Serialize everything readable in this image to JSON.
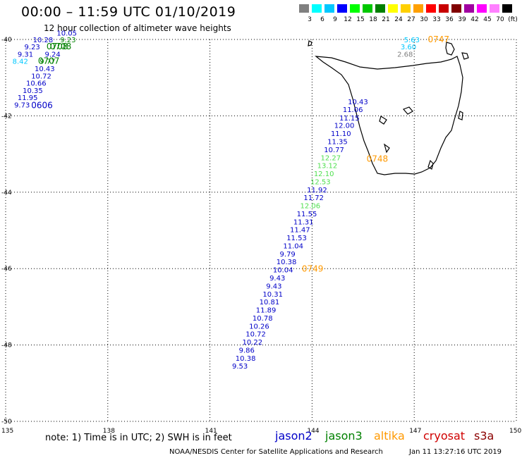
{
  "header": {
    "title": "00:00 – 11:59 UTC 01/10/2019",
    "subtitle": "12 hour collection of altimeter wave heights"
  },
  "colorbar": {
    "swatches": [
      "#808080",
      "#00ffff",
      "#00c8ff",
      "#0000ff",
      "#00ff00",
      "#00c800",
      "#008000",
      "#ffff00",
      "#ffd000",
      "#ffa000",
      "#ff0000",
      "#c80000",
      "#800000",
      "#a000a0",
      "#ff00ff",
      "#ff80ff",
      "#000000"
    ],
    "labels": [
      "3",
      "6",
      "9",
      "12",
      "15",
      "18",
      "21",
      "24",
      "27",
      "30",
      "33",
      "36",
      "39",
      "42",
      "45",
      "70",
      "(ft)"
    ]
  },
  "axes": {
    "lat_labels": [
      "-40",
      "-42",
      "-44",
      "-46",
      "-48",
      "-50"
    ],
    "lon_labels": [
      "135",
      "138",
      "141",
      "144",
      "147",
      "150"
    ]
  },
  "chart_data": {
    "type": "scatter",
    "xlabel": "",
    "ylabel": "",
    "xlim": [
      135,
      150
    ],
    "ylim": [
      -50,
      -40
    ],
    "colors": {
      "jason2": "#0000c8",
      "jason3": "#008000",
      "altika": "#ff9900",
      "cryosat": "#d00000",
      "s3a": "#8b0000"
    },
    "points": [
      {
        "lon": 136.5,
        "lat": -39.9,
        "v": "10.05",
        "c": "#0000c8"
      },
      {
        "lon": 136.6,
        "lat": -40.07,
        "v": "9.23",
        "c": "#008000"
      },
      {
        "lon": 135.8,
        "lat": -40.07,
        "v": "10.28",
        "c": "#0000c8"
      },
      {
        "lon": 135.55,
        "lat": -40.26,
        "v": "9.23",
        "c": "#0000c8"
      },
      {
        "lon": 135.35,
        "lat": -40.45,
        "v": "9.31",
        "c": "#0000c8"
      },
      {
        "lon": 136.15,
        "lat": -40.45,
        "v": "9.24",
        "c": "#0000c8"
      },
      {
        "lon": 135.2,
        "lat": -40.64,
        "v": "8.42",
        "c": "#00c8ff"
      },
      {
        "lon": 136.0,
        "lat": -40.64,
        "v": "9.77",
        "c": "#008000"
      },
      {
        "lon": 135.85,
        "lat": -40.83,
        "v": "10.43",
        "c": "#0000c8"
      },
      {
        "lon": 135.75,
        "lat": -41.02,
        "v": "10.72",
        "c": "#0000c8"
      },
      {
        "lon": 135.6,
        "lat": -41.21,
        "v": "10.66",
        "c": "#0000c8"
      },
      {
        "lon": 135.5,
        "lat": -41.4,
        "v": "10.35",
        "c": "#0000c8"
      },
      {
        "lon": 135.35,
        "lat": -41.59,
        "v": "11.95",
        "c": "#0000c8"
      },
      {
        "lon": 135.25,
        "lat": -41.78,
        "v": "9.73",
        "c": "#0000c8"
      },
      {
        "lon": 146.7,
        "lat": -40.07,
        "v": "5.63",
        "c": "#00c8ff"
      },
      {
        "lon": 146.6,
        "lat": -40.26,
        "v": "3.60",
        "c": "#00c8ff"
      },
      {
        "lon": 146.5,
        "lat": -40.45,
        "v": "2.68",
        "c": "#808080"
      },
      {
        "lon": 145.05,
        "lat": -41.7,
        "v": "10.43",
        "c": "#0000c8"
      },
      {
        "lon": 144.9,
        "lat": -41.9,
        "v": "11.06",
        "c": "#0000c8"
      },
      {
        "lon": 144.8,
        "lat": -42.12,
        "v": "11.15",
        "c": "#0000c8"
      },
      {
        "lon": 144.65,
        "lat": -42.32,
        "v": "12.00",
        "c": "#0000c8"
      },
      {
        "lon": 144.55,
        "lat": -42.53,
        "v": "11.10",
        "c": "#0000c8"
      },
      {
        "lon": 144.45,
        "lat": -42.74,
        "v": "11.35",
        "c": "#0000c8"
      },
      {
        "lon": 144.35,
        "lat": -42.95,
        "v": "10.77",
        "c": "#0000c8"
      },
      {
        "lon": 144.25,
        "lat": -43.16,
        "v": "12.27",
        "c": "#50e050"
      },
      {
        "lon": 144.15,
        "lat": -43.37,
        "v": "13.12",
        "c": "#50e050"
      },
      {
        "lon": 144.05,
        "lat": -43.58,
        "v": "12.10",
        "c": "#50e050"
      },
      {
        "lon": 143.95,
        "lat": -43.79,
        "v": "12.53",
        "c": "#50e050"
      },
      {
        "lon": 143.85,
        "lat": -44.0,
        "v": "11.92",
        "c": "#0000c8"
      },
      {
        "lon": 143.75,
        "lat": -44.21,
        "v": "11.72",
        "c": "#0000c8"
      },
      {
        "lon": 143.65,
        "lat": -44.42,
        "v": "12.06",
        "c": "#50e050"
      },
      {
        "lon": 143.55,
        "lat": -44.63,
        "v": "11.55",
        "c": "#0000c8"
      },
      {
        "lon": 143.45,
        "lat": -44.84,
        "v": "11.31",
        "c": "#0000c8"
      },
      {
        "lon": 143.35,
        "lat": -45.05,
        "v": "11.47",
        "c": "#0000c8"
      },
      {
        "lon": 143.25,
        "lat": -45.26,
        "v": "11.53",
        "c": "#0000c8"
      },
      {
        "lon": 143.15,
        "lat": -45.47,
        "v": "11.04",
        "c": "#0000c8"
      },
      {
        "lon": 143.05,
        "lat": -45.68,
        "v": "9.79",
        "c": "#0000c8"
      },
      {
        "lon": 142.95,
        "lat": -45.89,
        "v": "10.38",
        "c": "#0000c8"
      },
      {
        "lon": 142.85,
        "lat": -46.1,
        "v": "10.04",
        "c": "#0000c8"
      },
      {
        "lon": 142.75,
        "lat": -46.31,
        "v": "9.43",
        "c": "#0000c8"
      },
      {
        "lon": 142.65,
        "lat": -46.52,
        "v": "9.43",
        "c": "#0000c8"
      },
      {
        "lon": 142.55,
        "lat": -46.73,
        "v": "10.31",
        "c": "#0000c8"
      },
      {
        "lon": 142.45,
        "lat": -46.94,
        "v": "10.81",
        "c": "#0000c8"
      },
      {
        "lon": 142.35,
        "lat": -47.15,
        "v": "11.89",
        "c": "#0000c8"
      },
      {
        "lon": 142.25,
        "lat": -47.36,
        "v": "10.78",
        "c": "#0000c8"
      },
      {
        "lon": 142.15,
        "lat": -47.57,
        "v": "10.26",
        "c": "#0000c8"
      },
      {
        "lon": 142.05,
        "lat": -47.78,
        "v": "10.72",
        "c": "#0000c8"
      },
      {
        "lon": 141.95,
        "lat": -47.99,
        "v": "10.22",
        "c": "#0000c8"
      },
      {
        "lon": 141.85,
        "lat": -48.2,
        "v": "9.86",
        "c": "#0000c8"
      },
      {
        "lon": 141.75,
        "lat": -48.41,
        "v": "10.38",
        "c": "#0000c8"
      },
      {
        "lon": 141.65,
        "lat": -48.62,
        "v": "9.53",
        "c": "#0000c8"
      }
    ],
    "times": [
      {
        "lon": 136.2,
        "lat": -40.26,
        "v": "0708",
        "c": "#008000"
      },
      {
        "lon": 136.3,
        "lat": -40.26,
        "v": "0708",
        "c": "#008000"
      },
      {
        "lon": 135.95,
        "lat": -40.64,
        "v": "0707",
        "c": "#008000"
      },
      {
        "lon": 135.75,
        "lat": -41.8,
        "v": "0606",
        "c": "#0000c8"
      },
      {
        "lon": 147.4,
        "lat": -40.07,
        "v": "0747",
        "c": "#ff9900"
      },
      {
        "lon": 145.6,
        "lat": -43.2,
        "v": "0748",
        "c": "#ff9900"
      },
      {
        "lon": 143.7,
        "lat": -46.08,
        "v": "0749",
        "c": "#ff9900"
      }
    ]
  },
  "footer": {
    "note": "note: 1) Time is in UTC; 2) SWH is in feet",
    "satellites": [
      {
        "name": "jason2",
        "color": "#0000c8"
      },
      {
        "name": "jason3",
        "color": "#008000"
      },
      {
        "name": "altika",
        "color": "#ff9900"
      },
      {
        "name": "cryosat",
        "color": "#d00000"
      },
      {
        "name": "s3a",
        "color": "#8b0000"
      }
    ],
    "credit": "NOAA/NESDIS Center for Satellite Applications and Research",
    "timestamp": "Jan 11 13:27:16 UTC 2019"
  }
}
